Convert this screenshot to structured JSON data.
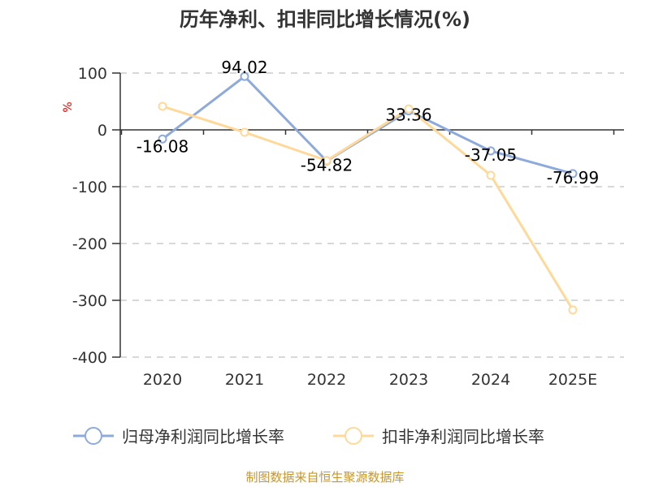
{
  "title": "历年净利、扣非同比增长情况(%)",
  "y_unit": "%",
  "source": "制图数据来自恒生聚源数据库",
  "colors": {
    "series1": "#8eaadb",
    "series2": "#ffd99a",
    "grid": "#cccccc",
    "axis": "#333333"
  },
  "chart_data": {
    "type": "line",
    "title": "历年净利、扣非同比增长情况(%)",
    "xlabel": "",
    "ylabel": "%",
    "categories": [
      "2020",
      "2021",
      "2022",
      "2023",
      "2024",
      "2025E"
    ],
    "ylim": [
      -400,
      100
    ],
    "yticks": [
      100,
      0,
      -100,
      -200,
      -300,
      -400
    ],
    "grid": true,
    "legend_position": "bottom",
    "series": [
      {
        "name": "归母净利润同比增长率",
        "values": [
          -16.08,
          94.02,
          -54.82,
          33.36,
          -37.05,
          -76.99
        ],
        "labels": [
          "-16.08",
          "94.02",
          "-54.82",
          "33.36",
          "-37.05",
          "-76.99"
        ]
      },
      {
        "name": "扣非净利润同比增长率",
        "values": [
          41.4,
          -4.3,
          -54.0,
          37.0,
          -80.0,
          -317.0
        ]
      }
    ]
  }
}
